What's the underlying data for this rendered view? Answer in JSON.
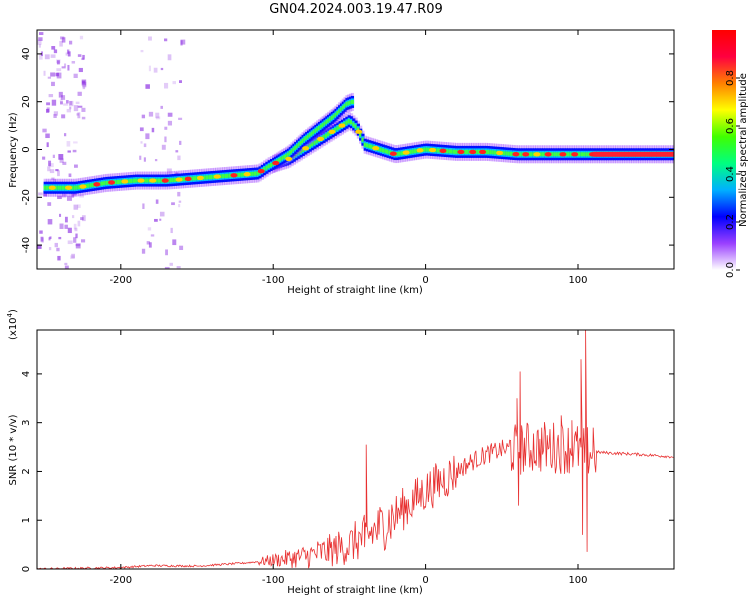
{
  "title": "GN04.2024.003.19.47.R09",
  "chart_data": [
    {
      "type": "heatmap",
      "name": "spectrogram",
      "xlabel": "Height of straight line (km)",
      "ylabel": "Frequency (Hz)",
      "xlim": [
        -255,
        163
      ],
      "ylim": [
        -50,
        50
      ],
      "xticks": [
        -200,
        -100,
        0,
        100
      ],
      "yticks": [
        -40,
        -20,
        0,
        20,
        40
      ],
      "ridge": {
        "x": [
          -250,
          -230,
          -210,
          -190,
          -170,
          -150,
          -130,
          -110,
          -103,
          -100,
          -90,
          -80,
          -70,
          -60,
          -50,
          -45,
          -40,
          -30,
          -20,
          -10,
          0,
          20,
          40,
          60,
          80,
          100,
          120,
          140,
          163
        ],
        "y": [
          -16,
          -16,
          -14,
          -13,
          -13,
          -12,
          -11,
          -10,
          -7,
          -6,
          -4,
          0,
          4,
          8,
          12,
          9,
          2,
          0,
          -2,
          -1,
          0,
          -1,
          -1,
          -2,
          -2,
          -2,
          -2,
          -2,
          -2
        ]
      },
      "upper_branch": {
        "x": [
          -100,
          -90,
          -80,
          -70,
          -60,
          -52,
          -48
        ],
        "y": [
          -6,
          -2,
          4,
          9,
          14,
          19,
          20
        ]
      },
      "colorbar": {
        "label": "Normalized spectral amplitude",
        "range": [
          0,
          1
        ],
        "ticks": [
          "0.0",
          "0.2",
          "0.4",
          "0.6",
          "0.8"
        ],
        "colors": [
          "#ffffff",
          "#9a40ff",
          "#0000ff",
          "#00b0ff",
          "#00ff80",
          "#40ff00",
          "#ffff00",
          "#ff8000",
          "#ff0040",
          "#ff0000"
        ]
      }
    },
    {
      "type": "line",
      "name": "snr",
      "xlabel": "Height of straight line (km)",
      "ylabel": "SNR (10 * v/v)",
      "yscale_label": "(x10",
      "yscale_exp": "4",
      "yscale_close": ")",
      "xlim": [
        -255,
        163
      ],
      "ylim": [
        0,
        4.9
      ],
      "xticks": [
        -200,
        -100,
        0,
        100
      ],
      "yticks": [
        0,
        1,
        2,
        3,
        4
      ],
      "color": "#e83030",
      "envelope": {
        "x": [
          -255,
          -200,
          -180,
          -150,
          -120,
          -100,
          -80,
          -60,
          -50,
          -40,
          -30,
          -20,
          -10,
          0,
          10,
          20,
          30,
          40,
          50,
          60,
          70,
          80,
          90,
          100,
          105,
          110,
          120,
          140,
          163
        ],
        "y": [
          0.0,
          0.03,
          0.07,
          0.06,
          0.12,
          0.18,
          0.25,
          0.4,
          0.5,
          0.65,
          0.85,
          1.1,
          1.35,
          1.6,
          1.8,
          2.0,
          2.2,
          2.35,
          2.45,
          2.45,
          2.5,
          2.5,
          2.5,
          2.45,
          2.4,
          2.4,
          2.38,
          2.35,
          2.3
        ]
      },
      "spikes": [
        {
          "x": -39,
          "y": 2.55
        },
        {
          "x": -40,
          "y": 0.45
        },
        {
          "x": 60,
          "y": 3.5
        },
        {
          "x": 61,
          "y": 1.3
        },
        {
          "x": 62,
          "y": 4.05
        },
        {
          "x": 89,
          "y": 3.15
        },
        {
          "x": 96,
          "y": 3.05
        },
        {
          "x": 102,
          "y": 4.3
        },
        {
          "x": 103,
          "y": 0.7
        },
        {
          "x": 105,
          "y": 4.9
        },
        {
          "x": 106,
          "y": 0.35
        },
        {
          "x": 110,
          "y": 2.9
        }
      ]
    }
  ]
}
